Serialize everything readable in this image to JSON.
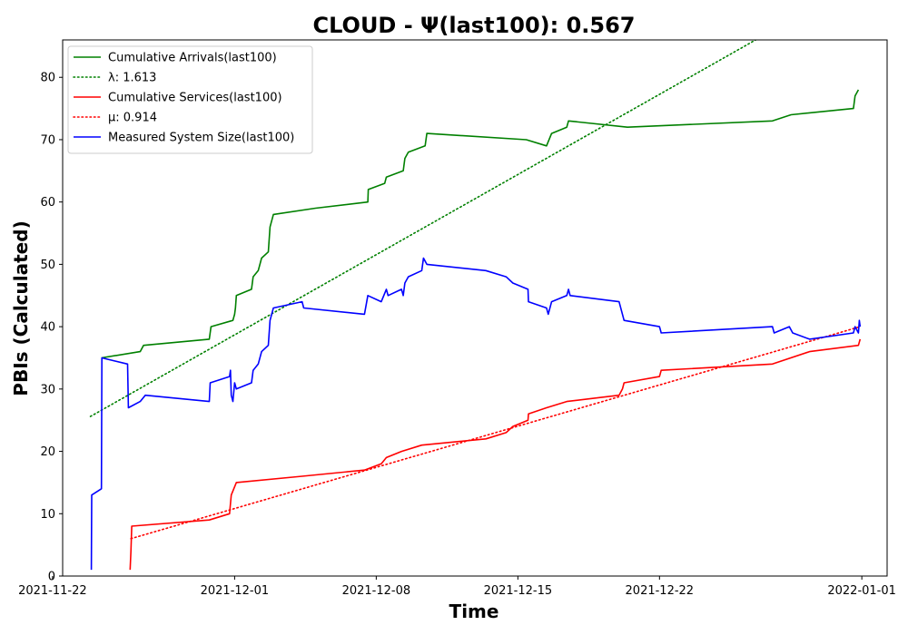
{
  "chart_data": {
    "type": "line",
    "title": "CLOUD -  Ψ(last100): 0.567",
    "xlabel": "Time",
    "ylabel": "PBIs (Calculated)",
    "x_type": "date",
    "xlim": [
      "2021-11-22T12:00",
      "2022-01-02T06:00"
    ],
    "ylim": [
      0,
      86
    ],
    "x_ticks": [
      "2021-11-22",
      "2021-12-01",
      "2021-12-08",
      "2021-12-15",
      "2021-12-22",
      "2022-01-01"
    ],
    "y_ticks": [
      0,
      10,
      20,
      30,
      40,
      50,
      60,
      70,
      80
    ],
    "grid": false,
    "legend_position": "top-left",
    "series": [
      {
        "name": "Cumulative Arrivals(last100)",
        "color": "#008000",
        "style": "solid",
        "points": [
          [
            "2021-11-24T10:00",
            35
          ],
          [
            "2021-11-26T08:00",
            36
          ],
          [
            "2021-11-26T12:00",
            37
          ],
          [
            "2021-11-29T18:00",
            38
          ],
          [
            "2021-11-29T20:00",
            40
          ],
          [
            "2021-11-30T22:00",
            41
          ],
          [
            "2021-11-31T00:00",
            42
          ],
          [
            "2021-12-01T01:00",
            43
          ],
          [
            "2021-12-01T02:00",
            45
          ],
          [
            "2021-12-01T20:00",
            46
          ],
          [
            "2021-12-01T22:00",
            48
          ],
          [
            "2021-12-02T04:00",
            49
          ],
          [
            "2021-12-02T08:00",
            51
          ],
          [
            "2021-12-02T16:00",
            52
          ],
          [
            "2021-12-02T18:00",
            56
          ],
          [
            "2021-12-02T22:00",
            58
          ],
          [
            "2021-12-05T00:00",
            59
          ],
          [
            "2021-12-07T14:00",
            60
          ],
          [
            "2021-12-07T14:30",
            62
          ],
          [
            "2021-12-08T10:00",
            63
          ],
          [
            "2021-12-08T12:00",
            64
          ],
          [
            "2021-12-09T08:00",
            65
          ],
          [
            "2021-12-09T10:00",
            67
          ],
          [
            "2021-12-09T14:00",
            68
          ],
          [
            "2021-12-10T10:00",
            69
          ],
          [
            "2021-12-10T12:00",
            71
          ],
          [
            "2021-12-15T10:00",
            70
          ],
          [
            "2021-12-16T10:00",
            69
          ],
          [
            "2021-12-16T16:00",
            71
          ],
          [
            "2021-12-17T10:00",
            72
          ],
          [
            "2021-12-17T12:00",
            73
          ],
          [
            "2021-12-20T10:00",
            72
          ],
          [
            "2021-12-27T14:00",
            73
          ],
          [
            "2021-12-28T12:00",
            74
          ],
          [
            "2021-12-31T14:00",
            75
          ],
          [
            "2021-12-31T16:00",
            77
          ],
          [
            "2021-12-31T20:00",
            78
          ]
        ]
      },
      {
        "name": "λ: 1.613",
        "color": "#008000",
        "style": "dotted",
        "points": [
          [
            "2021-11-23T21:00",
            25.6
          ],
          [
            "2021-12-26T18:00",
            86
          ]
        ]
      },
      {
        "name": "Cumulative Services(last100)",
        "color": "#ff0000",
        "style": "solid",
        "points": [
          [
            "2021-11-25T20:00",
            1
          ],
          [
            "2021-11-25T21:00",
            4
          ],
          [
            "2021-11-25T22:00",
            8
          ],
          [
            "2021-11-29T18:00",
            9
          ],
          [
            "2021-11-30T18:00",
            10
          ],
          [
            "2021-11-30T20:00",
            13
          ],
          [
            "2021-12-01T02:00",
            15
          ],
          [
            "2021-12-04T08:00",
            16
          ],
          [
            "2021-12-07T10:00",
            17
          ],
          [
            "2021-12-08T06:00",
            18
          ],
          [
            "2021-12-08T12:00",
            19
          ],
          [
            "2021-12-09T06:00",
            20
          ],
          [
            "2021-12-10T06:00",
            21
          ],
          [
            "2021-12-13T10:00",
            22
          ],
          [
            "2021-12-14T10:00",
            23
          ],
          [
            "2021-12-14T18:00",
            24
          ],
          [
            "2021-12-15T12:00",
            25
          ],
          [
            "2021-12-15T12:30",
            26
          ],
          [
            "2021-12-16T10:00",
            27
          ],
          [
            "2021-12-17T10:00",
            28
          ],
          [
            "2021-12-20T00:00",
            29
          ],
          [
            "2021-12-20T04:00",
            30
          ],
          [
            "2021-12-20T06:00",
            31
          ],
          [
            "2021-12-22T00:00",
            32
          ],
          [
            "2021-12-22T02:00",
            33
          ],
          [
            "2021-12-27T14:00",
            34
          ],
          [
            "2021-12-29T10:00",
            36
          ],
          [
            "2021-12-31T20:00",
            37
          ],
          [
            "2021-12-31T22:00",
            38
          ]
        ]
      },
      {
        "name": "μ: 0.914",
        "color": "#ff0000",
        "style": "dotted",
        "points": [
          [
            "2021-11-25T21:00",
            6
          ],
          [
            "2021-12-31T22:00",
            40
          ]
        ]
      },
      {
        "name": "Measured System Size(last100)",
        "color": "#0000ff",
        "style": "solid",
        "points": [
          [
            "2021-11-23T22:00",
            1
          ],
          [
            "2021-11-23T22:30",
            13
          ],
          [
            "2021-11-24T10:00",
            14
          ],
          [
            "2021-11-24T10:30",
            35
          ],
          [
            "2021-11-25T17:00",
            34
          ],
          [
            "2021-11-25T18:00",
            27
          ],
          [
            "2021-11-26T08:00",
            28
          ],
          [
            "2021-11-26T14:00",
            29
          ],
          [
            "2021-11-29T18:00",
            28
          ],
          [
            "2021-11-29T19:00",
            31
          ],
          [
            "2021-11-30T18:00",
            32
          ],
          [
            "2021-11-30T19:00",
            33
          ],
          [
            "2021-11-30T20:00",
            29
          ],
          [
            "2021-11-30T22:00",
            28
          ],
          [
            "2021-12-01T00:00",
            31
          ],
          [
            "2021-12-01T02:00",
            30
          ],
          [
            "2021-12-01T20:00",
            31
          ],
          [
            "2021-12-01T22:00",
            33
          ],
          [
            "2021-12-02T04:00",
            34
          ],
          [
            "2021-12-02T08:00",
            36
          ],
          [
            "2021-12-02T16:00",
            37
          ],
          [
            "2021-12-02T18:00",
            41
          ],
          [
            "2021-12-02T22:00",
            43
          ],
          [
            "2021-12-04T08:00",
            44
          ],
          [
            "2021-12-04T10:00",
            43
          ],
          [
            "2021-12-07T10:00",
            42
          ],
          [
            "2021-12-07T14:00",
            45
          ],
          [
            "2021-12-08T06:00",
            44
          ],
          [
            "2021-12-08T12:00",
            46
          ],
          [
            "2021-12-08T14:00",
            45
          ],
          [
            "2021-12-09T06:00",
            46
          ],
          [
            "2021-12-09T08:00",
            45
          ],
          [
            "2021-12-09T10:00",
            47
          ],
          [
            "2021-12-09T14:00",
            48
          ],
          [
            "2021-12-10T06:00",
            49
          ],
          [
            "2021-12-10T08:00",
            51
          ],
          [
            "2021-12-10T12:00",
            50
          ],
          [
            "2021-12-13T10:00",
            49
          ],
          [
            "2021-12-14T10:00",
            48
          ],
          [
            "2021-12-14T18:00",
            47
          ],
          [
            "2021-12-15T12:00",
            46
          ],
          [
            "2021-12-15T12:30",
            44
          ],
          [
            "2021-12-16T10:00",
            43
          ],
          [
            "2021-12-16T12:00",
            42
          ],
          [
            "2021-12-16T16:00",
            44
          ],
          [
            "2021-12-17T10:00",
            45
          ],
          [
            "2021-12-17T12:00",
            46
          ],
          [
            "2021-12-17T14:00",
            45
          ],
          [
            "2021-12-20T00:00",
            44
          ],
          [
            "2021-12-20T04:00",
            42
          ],
          [
            "2021-12-20T06:00",
            41
          ],
          [
            "2021-12-22T00:00",
            40
          ],
          [
            "2021-12-22T02:00",
            39
          ],
          [
            "2021-12-27T14:00",
            40
          ],
          [
            "2021-12-27T16:00",
            39
          ],
          [
            "2021-12-28T10:00",
            40
          ],
          [
            "2021-12-28T14:00",
            39
          ],
          [
            "2021-12-29T10:00",
            38
          ],
          [
            "2021-12-31T14:00",
            39
          ],
          [
            "2021-12-31T16:00",
            40
          ],
          [
            "2021-12-31T20:00",
            39
          ],
          [
            "2021-12-31T21:00",
            41
          ],
          [
            "2021-12-31T22:00",
            40
          ]
        ]
      }
    ]
  }
}
